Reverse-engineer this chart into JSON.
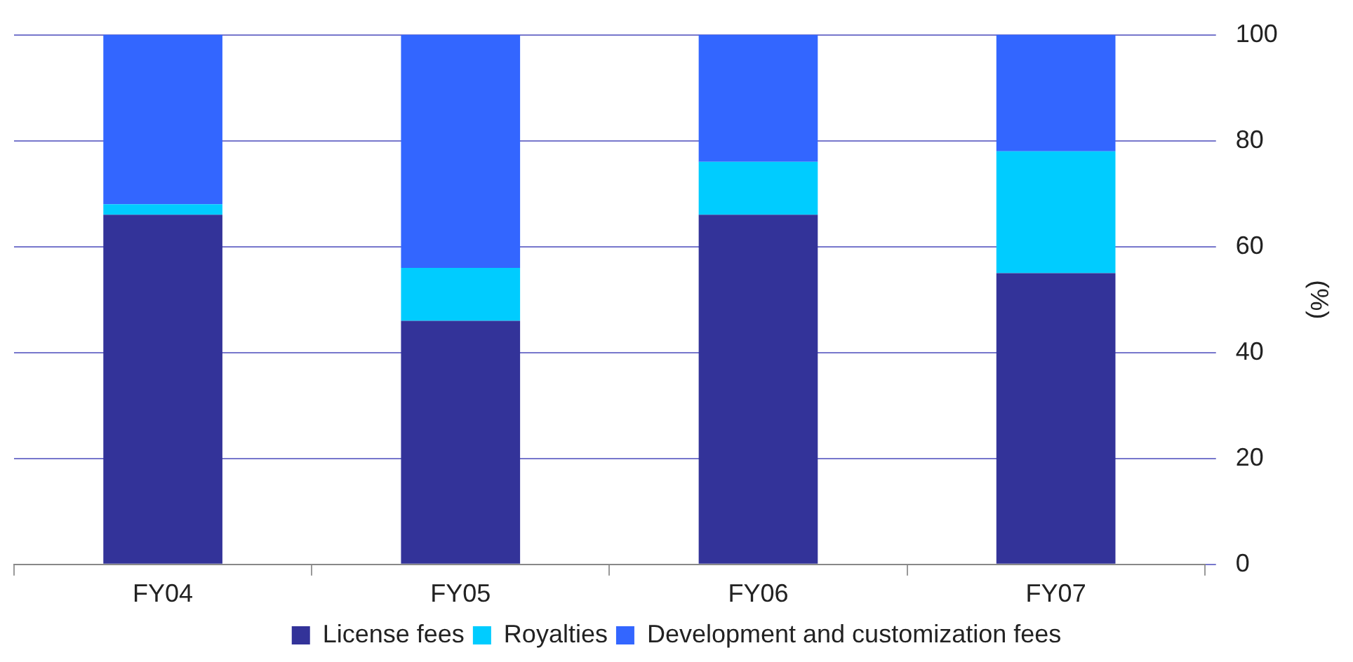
{
  "chart_data": {
    "type": "bar",
    "stacked": true,
    "categories": [
      "FY04",
      "FY05",
      "FY06",
      "FY07"
    ],
    "ylabel": "(%)",
    "ylim": [
      0,
      100
    ],
    "yticks": [
      0,
      20,
      40,
      60,
      80,
      100
    ],
    "grid": "y",
    "legend": "bottom",
    "series": [
      {
        "name": "License fees",
        "color": "#333399",
        "values": [
          66,
          46,
          66,
          55
        ]
      },
      {
        "name": "Royalties",
        "color": "#00ccff",
        "values": [
          2,
          10,
          10,
          23
        ]
      },
      {
        "name": "Development and customization fees",
        "color": "#3366ff",
        "values": [
          32,
          44,
          24,
          22
        ]
      }
    ]
  }
}
